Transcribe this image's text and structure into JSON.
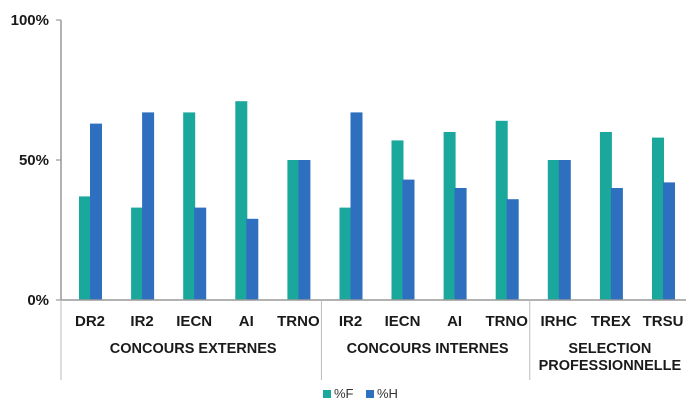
{
  "chart_data": {
    "type": "bar",
    "ylim": [
      0,
      100
    ],
    "y_ticks": [
      "0%",
      "50%",
      "100%"
    ],
    "grid": false,
    "legend_position": "bottom-center",
    "colors": {
      "%F": "#1aa89c",
      "%H": "#2f6fbf"
    },
    "groups": [
      {
        "label": "CONCOURS EXTERNES",
        "categories": [
          "DR2",
          "IR2",
          "IECN",
          "AI",
          "TRNO"
        ]
      },
      {
        "label": "CONCOURS INTERNES",
        "categories": [
          "IR2",
          "IECN",
          "AI",
          "TRNO"
        ]
      },
      {
        "label": [
          "SELECTION",
          "PROFESSIONNELLE"
        ],
        "categories": [
          "IRHC",
          "TREX",
          "TRSU"
        ]
      }
    ],
    "categories": [
      "DR2",
      "IR2",
      "IECN",
      "AI",
      "TRNO",
      "IR2",
      "IECN",
      "AI",
      "TRNO",
      "IRHC",
      "TREX",
      "TRSU"
    ],
    "series": [
      {
        "name": "%F",
        "values": [
          37,
          33,
          67,
          71,
          50,
          33,
          57,
          60,
          64,
          50,
          60,
          58
        ]
      },
      {
        "name": "%H",
        "values": [
          63,
          67,
          33,
          29,
          50,
          67,
          43,
          40,
          36,
          50,
          40,
          42
        ]
      }
    ]
  }
}
